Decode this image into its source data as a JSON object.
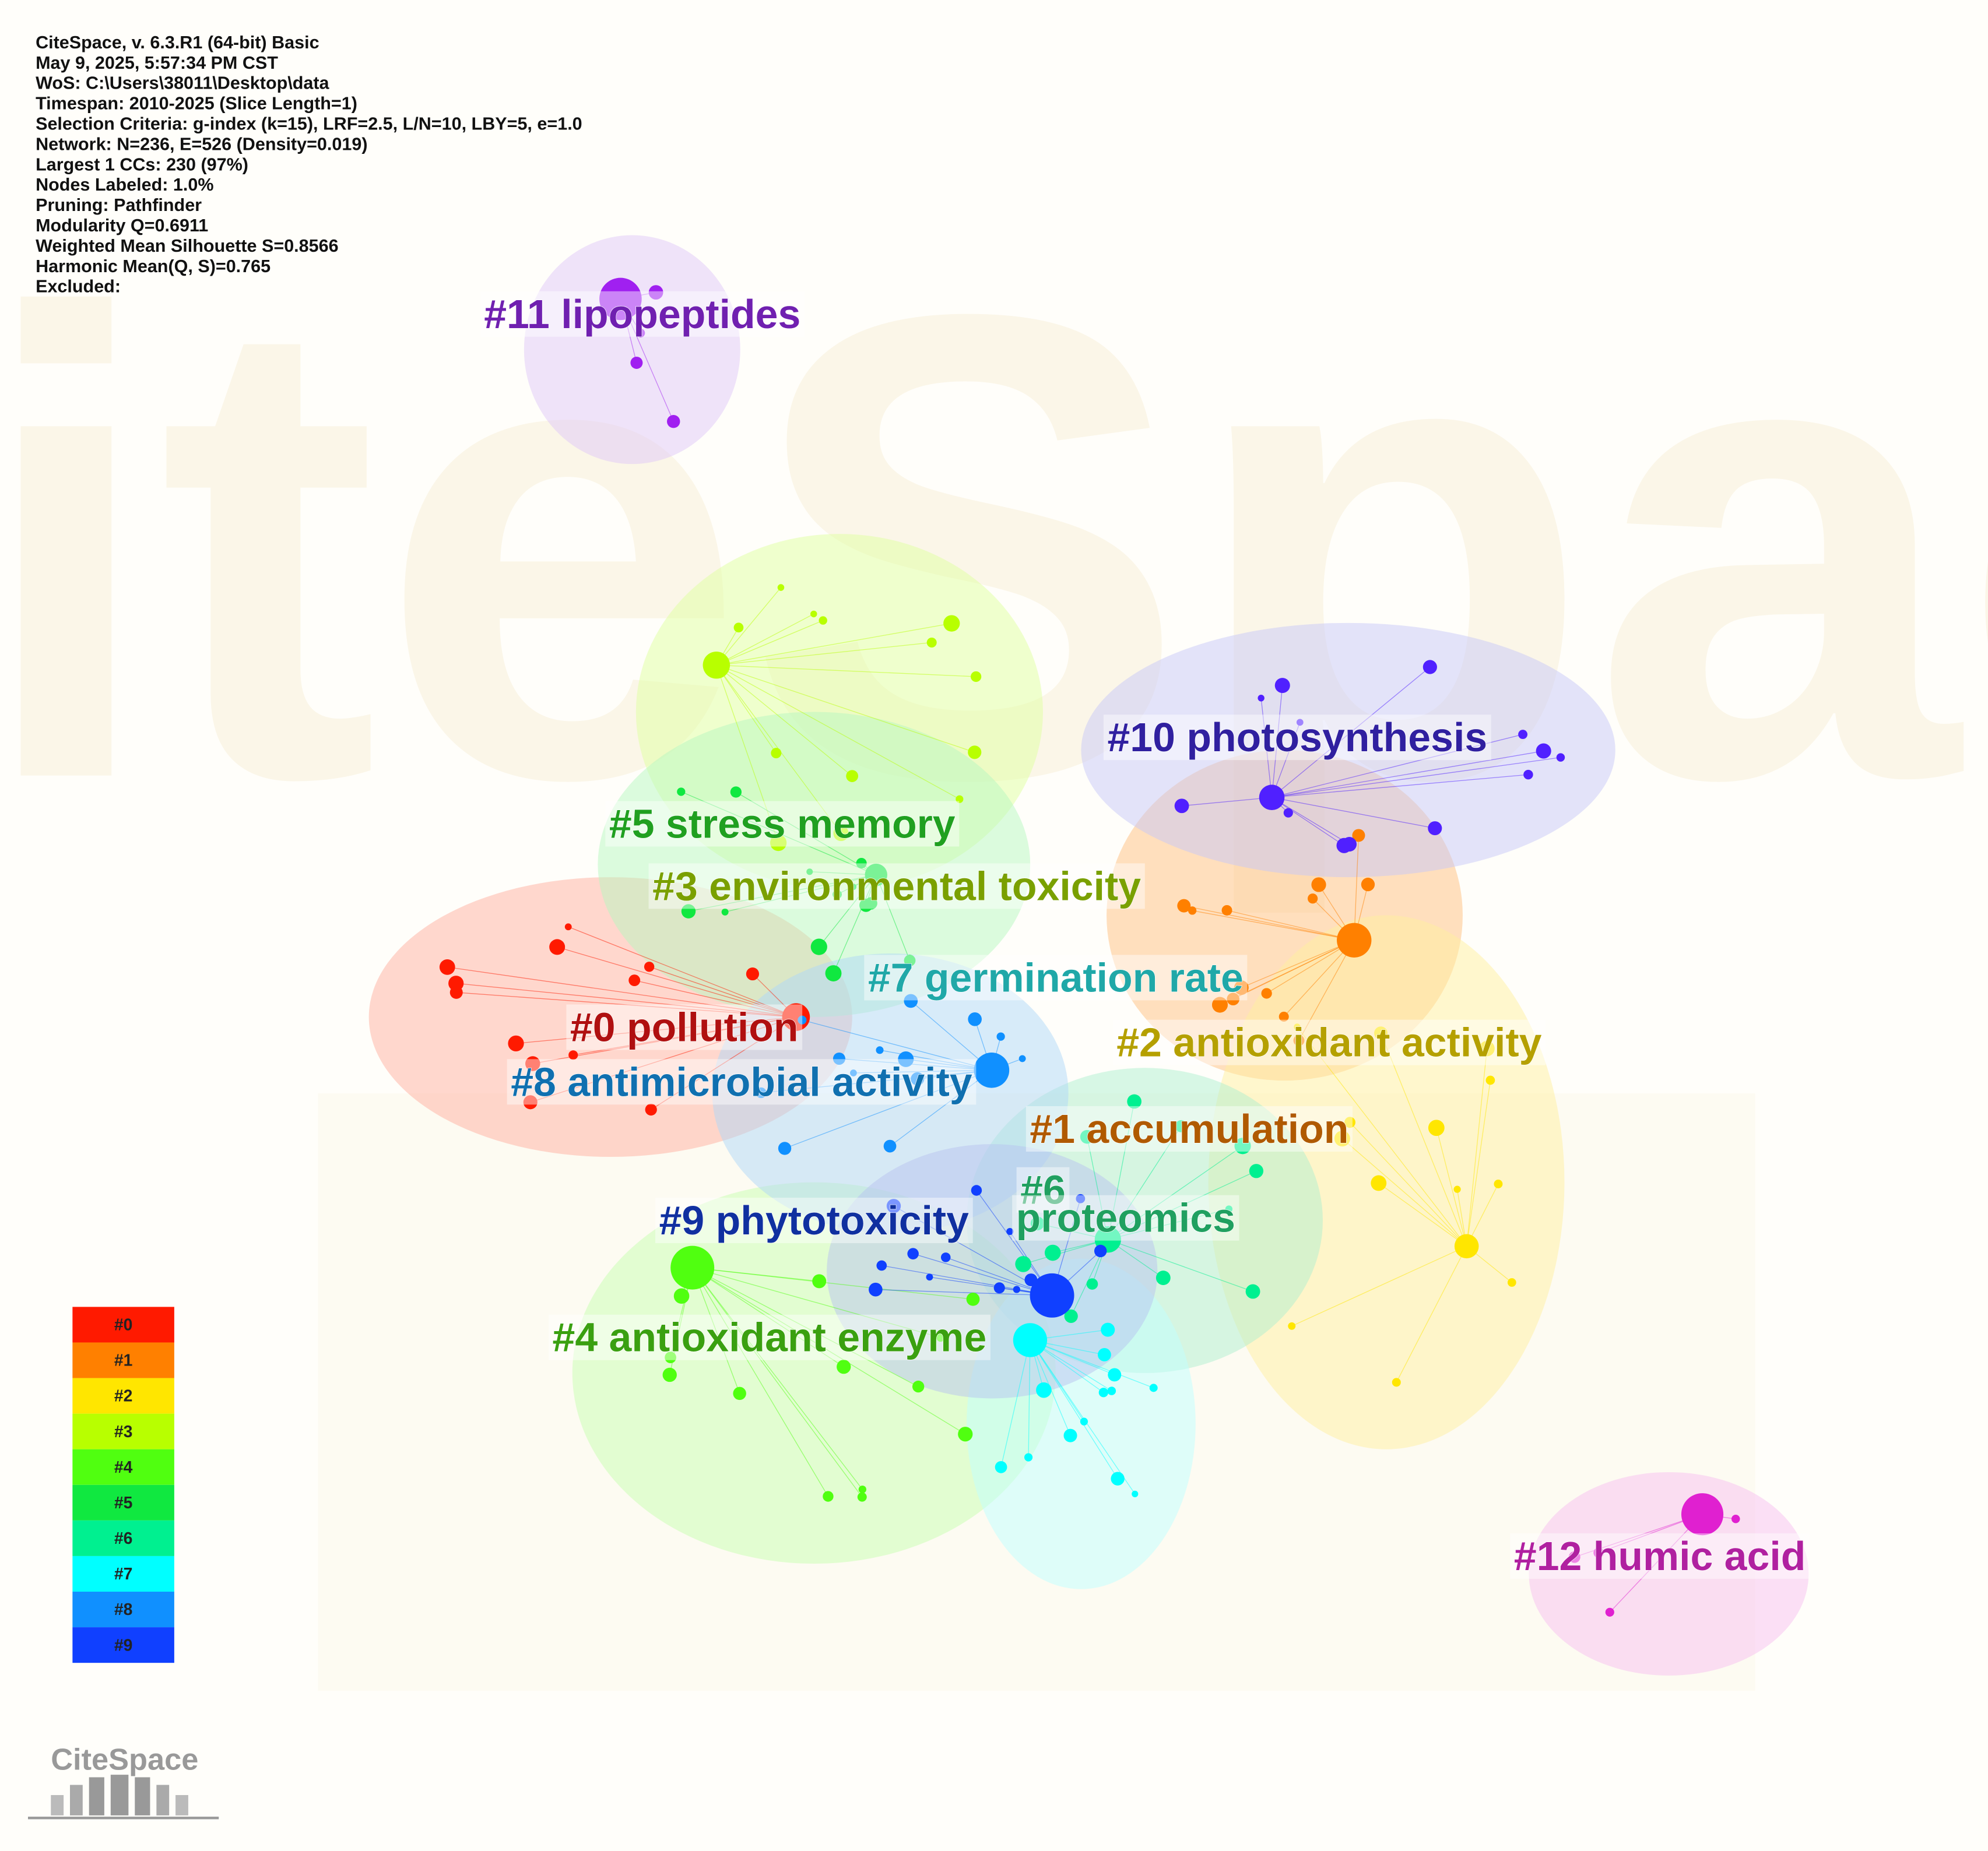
{
  "info": [
    "CiteSpace, v. 6.3.R1 (64-bit) Basic",
    "May 9, 2025, 5:57:34 PM CST",
    "WoS: C:\\Users\\38011\\Desktop\\data",
    "Timespan: 2010-2025 (Slice Length=1)",
    "Selection Criteria: g-index (k=15), LRF=2.5, L/N=10, LBY=5, e=1.0",
    "Network: N=236, E=526 (Density=0.019)",
    "Largest 1 CCs: 230 (97%)",
    "Nodes Labeled: 1.0%",
    "Pruning: Pathfinder",
    "Modularity Q=0.6911",
    "Weighted Mean Silhouette S=0.8566",
    "Harmonic Mean(Q, S)=0.765",
    "Excluded:"
  ],
  "clusters": [
    {
      "lines": [
        "#0 pollution"
      ],
      "color": "#b01010"
    },
    {
      "lines": [
        "#1 accumulation"
      ],
      "color": "#b05a00"
    },
    {
      "lines": [
        "#2 antioxidant activity"
      ],
      "color": "#b5a000"
    },
    {
      "lines": [
        "#3 environmental toxicity"
      ],
      "color": "#7aa000"
    },
    {
      "lines": [
        "#4 antioxidant enzyme"
      ],
      "color": "#3aa010"
    },
    {
      "lines": [
        "#5 stress memory"
      ],
      "color": "#20a020"
    },
    {
      "lines": [
        "#6",
        "proteomics"
      ],
      "color": "#20a060"
    },
    {
      "lines": [
        "#7 germination rate"
      ],
      "color": "#20a8a8"
    },
    {
      "lines": [
        "#8 antimicrobial activity"
      ],
      "color": "#1070b0"
    },
    {
      "lines": [
        "#9 phytotoxicity"
      ],
      "color": "#1030a0"
    },
    {
      "lines": [
        "#10 photosynthesis"
      ],
      "color": "#3020a0"
    },
    {
      "lines": [
        "#11 lipopeptides"
      ],
      "color": "#7020b0"
    },
    {
      "lines": [
        "#12 humic acid"
      ],
      "color": "#b020a0"
    }
  ],
  "legend": [
    {
      "label": "#0",
      "color": "#ff1a00"
    },
    {
      "label": "#1",
      "color": "#ff8000"
    },
    {
      "label": "#2",
      "color": "#ffe600"
    },
    {
      "label": "#3",
      "color": "#b8ff00"
    },
    {
      "label": "#4",
      "color": "#50ff10"
    },
    {
      "label": "#5",
      "color": "#10e840"
    },
    {
      "label": "#6",
      "color": "#00f090"
    },
    {
      "label": "#7",
      "color": "#00ffff"
    },
    {
      "label": "#8",
      "color": "#1090ff"
    },
    {
      "label": "#9",
      "color": "#1040ff"
    }
  ],
  "logo": "CiteSpace"
}
